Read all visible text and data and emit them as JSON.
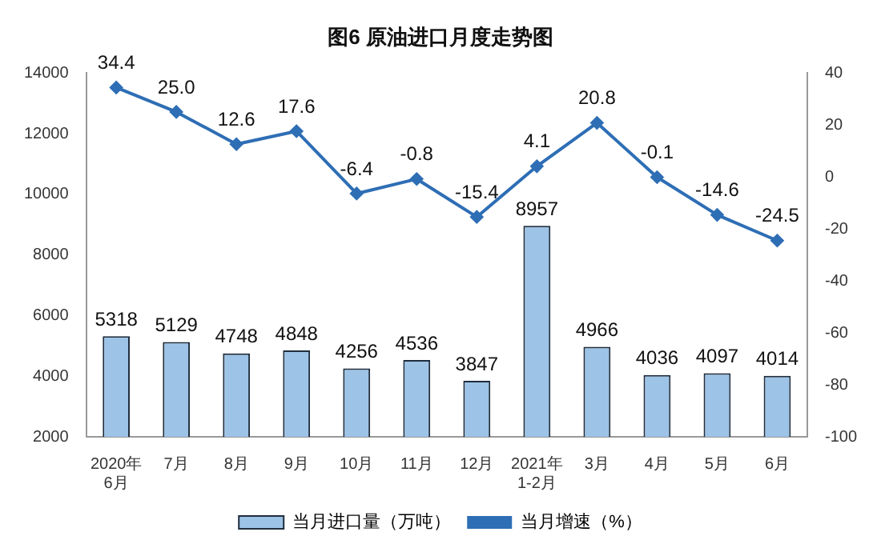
{
  "chart_data": {
    "type": "bar",
    "title": "图6 原油进口月度走势图",
    "categories": [
      "2020年\n6月",
      "7月",
      "8月",
      "9月",
      "10月",
      "11月",
      "12月",
      "2021年\n1-2月",
      "3月",
      "4月",
      "5月",
      "6月"
    ],
    "series": [
      {
        "name": "当月进口量（万吨）",
        "color": "#9dc3e6",
        "values": [
          5318,
          5129,
          4748,
          4848,
          4256,
          4536,
          3847,
          8957,
          4966,
          4036,
          4097,
          4014
        ]
      },
      {
        "name": "当月增速（%）",
        "type": "line",
        "axis": "y2",
        "color": "#2e6eb5",
        "values": [
          34.4,
          25.0,
          12.6,
          17.6,
          -6.4,
          -0.8,
          -15.4,
          4.1,
          20.8,
          -0.1,
          -14.6,
          -24.5
        ],
        "value_labels": [
          "34.4",
          "25.0",
          "12.6",
          "17.6",
          "-6.4",
          "-0.8",
          "-15.4",
          "4.1",
          "20.8",
          "-0.1",
          "-14.6",
          "-24.5"
        ]
      }
    ],
    "ylim": [
      2000,
      14000
    ],
    "yticks": [
      2000,
      4000,
      6000,
      8000,
      10000,
      12000,
      14000
    ],
    "y2lim": [
      -100,
      40
    ],
    "y2ticks": [
      -100,
      -80,
      -60,
      -40,
      -20,
      0,
      20,
      40
    ],
    "data_labels": true,
    "grid": false,
    "legend": "bottom",
    "marker": "diamond",
    "line_style": "solid"
  }
}
